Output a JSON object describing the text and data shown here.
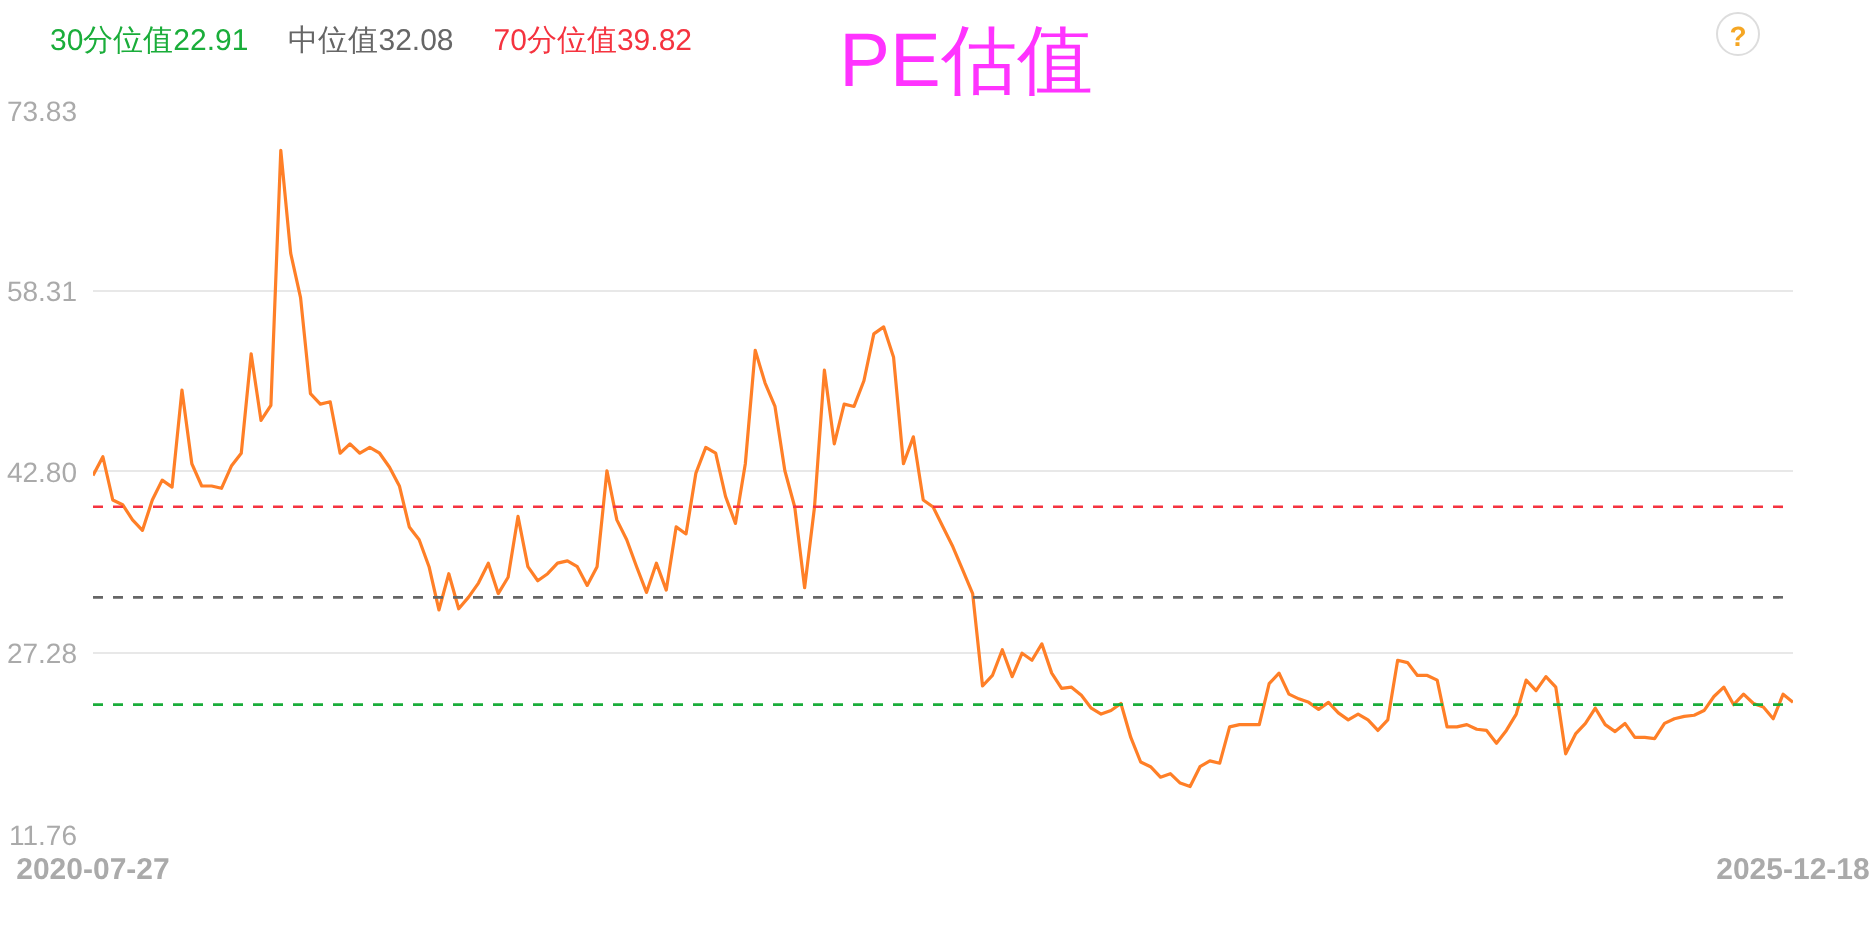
{
  "chart_data": {
    "type": "line",
    "title": "PE估值",
    "annotations": [
      "?"
    ],
    "categories": [
      "2020-07-27",
      null,
      null,
      null,
      null,
      null,
      null,
      null,
      null,
      null,
      null,
      null,
      null,
      null,
      null,
      null,
      null,
      null,
      null,
      null,
      null,
      null,
      null,
      null,
      null,
      null,
      null,
      null,
      null,
      null,
      null,
      null,
      null,
      null,
      null,
      null,
      null,
      null,
      null,
      null,
      null,
      null,
      null,
      null,
      null,
      null,
      null,
      null,
      null,
      null,
      null,
      null,
      null,
      null,
      null,
      null,
      null,
      null,
      null,
      null,
      null,
      null,
      null,
      null,
      null,
      null,
      null,
      null,
      null,
      null,
      null,
      null,
      null,
      null,
      null,
      null,
      null,
      null,
      null,
      null,
      null,
      null,
      null,
      null,
      null,
      null,
      null,
      null,
      null,
      null,
      null,
      null,
      null,
      null,
      null,
      null,
      null,
      null,
      null,
      null,
      null,
      null,
      null,
      null,
      null,
      null,
      null,
      null,
      null,
      null,
      null,
      null,
      null,
      null,
      null,
      null,
      null,
      null,
      null,
      null,
      null,
      null,
      null,
      null,
      null,
      null,
      null,
      null,
      null,
      null,
      null,
      null,
      null,
      null,
      null,
      null,
      null,
      null,
      null,
      null,
      null,
      null,
      null,
      null,
      null,
      null,
      null,
      null,
      null,
      null,
      null,
      null,
      null,
      null,
      null,
      null,
      null,
      null,
      null,
      null,
      null,
      null,
      null,
      null,
      null,
      null,
      null,
      null,
      null,
      null,
      null,
      null,
      "2025-12-18"
    ],
    "series": [
      {
        "color": "#ff7f27",
        "values": [
          42.5,
          44.1,
          40.4,
          40.0,
          38.7,
          37.8,
          40.4,
          42.1,
          41.5,
          49.8,
          43.5,
          41.6,
          41.6,
          41.4,
          43.3,
          44.4,
          52.9,
          47.2,
          48.5,
          70.3,
          61.5,
          57.7,
          49.5,
          48.6,
          48.8,
          44.4,
          45.2,
          44.4,
          44.9,
          44.4,
          43.2,
          41.6,
          38.1,
          37.0,
          34.7,
          31.0,
          34.1,
          31.1,
          32.1,
          33.3,
          35.0,
          32.4,
          33.8,
          39.0,
          34.7,
          33.5,
          34.1,
          35.0,
          35.2,
          34.7,
          33.1,
          34.7,
          42.9,
          38.7,
          37.0,
          34.7,
          32.5,
          35.0,
          32.7,
          38.1,
          37.5,
          42.7,
          44.9,
          44.4,
          40.7,
          38.4,
          43.5,
          53.2,
          50.4,
          48.4,
          42.9,
          39.8,
          32.9,
          39.8,
          51.5,
          45.2,
          48.6,
          48.4,
          50.6,
          54.6,
          55.2,
          52.6,
          43.5,
          45.8,
          40.4,
          39.8,
          38.1,
          36.4,
          34.4,
          32.4,
          24.5,
          25.4,
          27.6,
          25.3,
          27.3,
          26.7,
          28.1,
          25.6,
          24.3,
          24.4,
          23.7,
          22.6,
          22.1,
          22.4,
          23.0,
          20.1,
          18.0,
          17.6,
          16.7,
          17.0,
          16.2,
          15.9,
          17.6,
          18.1,
          17.9,
          21.0,
          21.2,
          21.2,
          21.2,
          24.7,
          25.6,
          23.8,
          23.4,
          23.1,
          22.5,
          23.1,
          22.2,
          21.6,
          22.1,
          21.6,
          20.7,
          21.6,
          26.7,
          26.5,
          25.4,
          25.4,
          25.0,
          21.0,
          21.0,
          21.2,
          20.8,
          20.7,
          19.6,
          20.7,
          22.1,
          25.0,
          24.1,
          25.3,
          24.4,
          18.7,
          20.4,
          21.3,
          22.6,
          21.2,
          20.6,
          21.3,
          20.1,
          20.1,
          20.0,
          21.3,
          21.7,
          21.9,
          22.0,
          22.4,
          23.6,
          24.4,
          22.9,
          23.8,
          23.0,
          22.7,
          21.7,
          23.8,
          23.1
        ]
      }
    ],
    "ylim": [
      11.76,
      73.83
    ],
    "yticks": [
      11.76,
      27.28,
      {
        "value": 42.8,
        "label": "42.80"
      },
      58.31,
      73.83
    ],
    "grid": "y",
    "marker": "none",
    "line_style": "solid",
    "ref_lines": [
      {
        "axis": "y",
        "value": 22.91,
        "label": "30分位值22.91",
        "color": "#1aad3a",
        "line_style": "dashed"
      },
      {
        "axis": "y",
        "value": 32.08,
        "label": "中位值32.08",
        "color": "#666666",
        "line_style": "dashed"
      },
      {
        "axis": "y",
        "value": 39.82,
        "label": "70分位值39.82",
        "color": "#f5333f",
        "line_style": "dashed"
      }
    ]
  }
}
